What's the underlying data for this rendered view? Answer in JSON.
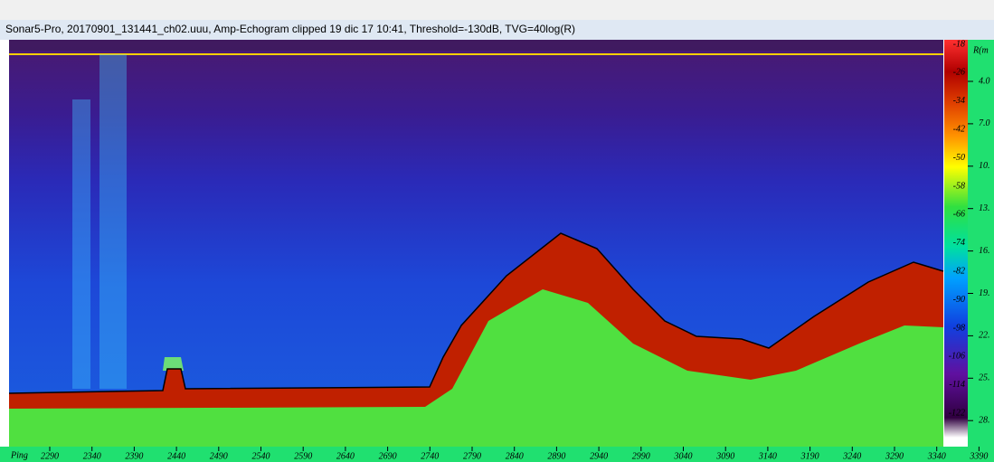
{
  "window": {
    "title": "Sonar5-Pro, 20170901_131441_ch02.uuu, Amp-Echogram clipped 19 dic 17 10:41, Threshold=-130dB, TVG=40log(R)"
  },
  "colorbar": {
    "labels": [
      "-18",
      "-26",
      "-34",
      "-42",
      "-50",
      "-58",
      "-66",
      "-74",
      "-82",
      "-90",
      "-98",
      "-106",
      "-114",
      "-122"
    ]
  },
  "range_axis": {
    "title": "R(m",
    "labels": [
      "4.0",
      "7.0",
      "10.",
      "13.",
      "16.",
      "19.",
      "22.",
      "25.",
      "28."
    ]
  },
  "ping_axis": {
    "title": "Ping",
    "labels": [
      "2290",
      "2340",
      "2390",
      "2440",
      "2490",
      "2540",
      "2590",
      "2640",
      "2690",
      "2740",
      "2790",
      "2840",
      "2890",
      "2940",
      "2990",
      "3040",
      "3090",
      "3140",
      "3190",
      "3240",
      "3290",
      "3340",
      "3390"
    ]
  }
}
